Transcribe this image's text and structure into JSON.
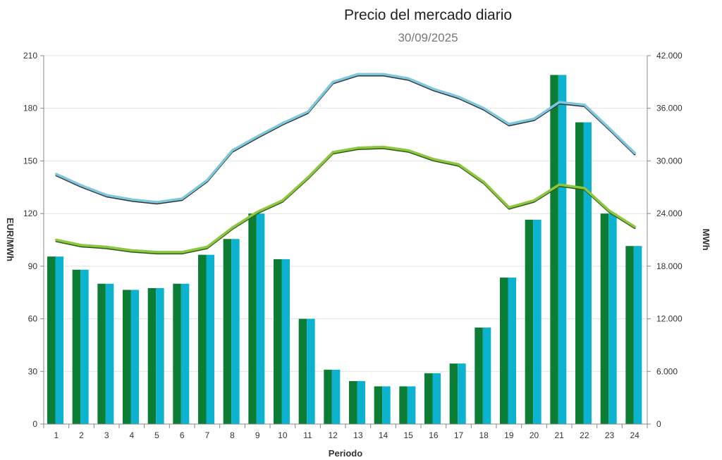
{
  "chart_data": {
    "type": "bar",
    "title": "Precio del mercado diario",
    "subtitle": "30/09/2025",
    "xlabel": "Periodo",
    "ylabel_left": "EUR/MWh",
    "ylabel_right": "MWh",
    "categories": [
      "1",
      "2",
      "3",
      "4",
      "5",
      "6",
      "7",
      "8",
      "9",
      "10",
      "11",
      "12",
      "13",
      "14",
      "15",
      "16",
      "17",
      "18",
      "19",
      "20",
      "21",
      "22",
      "23",
      "24"
    ],
    "ylim_left": [
      0,
      210
    ],
    "yticks_left": [
      "0",
      "30",
      "60",
      "90",
      "120",
      "150",
      "180",
      "210"
    ],
    "ylim_right": [
      0,
      42000
    ],
    "yticks_right": [
      "0",
      "6.000",
      "12.000",
      "18.000",
      "24.000",
      "30.000",
      "36.000",
      "42.000"
    ],
    "grid": true,
    "series": [
      {
        "kind": "bar",
        "axis": "left",
        "color": "#0b7d35",
        "values": [
          95.5,
          88,
          80,
          76.5,
          77.5,
          80,
          96.5,
          105.5,
          120,
          94,
          60,
          31,
          24.5,
          21.5,
          21.5,
          29,
          34.5,
          55,
          83.5,
          116.5,
          199,
          172,
          120,
          101.5
        ]
      },
      {
        "kind": "bar",
        "axis": "left",
        "color": "#0bb3d0",
        "values": [
          95.5,
          88,
          80,
          76.5,
          77.5,
          80,
          96.5,
          105.5,
          120,
          94,
          60,
          31,
          24.5,
          21.5,
          21.5,
          29,
          34.5,
          55,
          83.5,
          116.5,
          199,
          172,
          120,
          101.5
        ]
      },
      {
        "kind": "line",
        "axis": "right",
        "color": "#7ec8de",
        "shadow": "#333333",
        "values": [
          28500,
          27200,
          26100,
          25600,
          25300,
          25700,
          27800,
          31200,
          32800,
          34300,
          35600,
          39000,
          39900,
          39900,
          39400,
          38200,
          37300,
          36000,
          34200,
          34800,
          36700,
          36400,
          33700,
          30900
        ]
      },
      {
        "kind": "line",
        "axis": "right",
        "color": "#8dc63f",
        "shadow": "#2f5a14",
        "values": [
          21000,
          20400,
          20200,
          19800,
          19600,
          19600,
          20200,
          22400,
          24200,
          25500,
          28100,
          31000,
          31500,
          31600,
          31200,
          30200,
          29600,
          27600,
          24700,
          25500,
          27300,
          26900,
          24300,
          22500
        ]
      }
    ]
  }
}
